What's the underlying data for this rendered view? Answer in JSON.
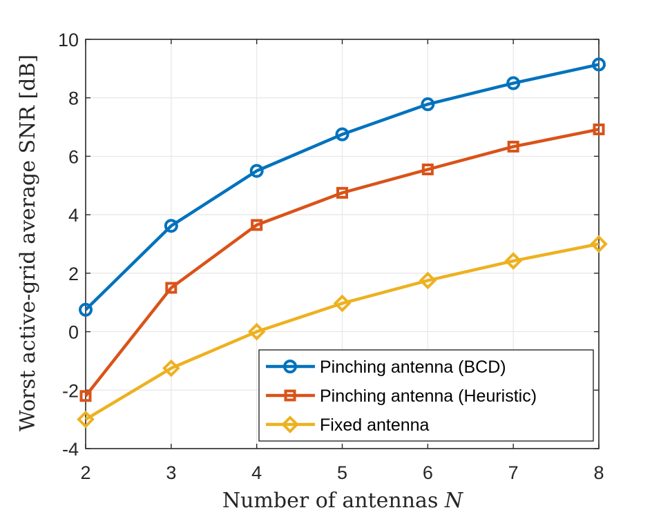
{
  "chart_data": {
    "type": "line",
    "title": "",
    "xlabel": "Number of antennas",
    "xlabel_var": "N",
    "ylabel": "Worst active-grid average SNR [dB]",
    "x": [
      2,
      3,
      4,
      5,
      6,
      7,
      8
    ],
    "xlim": [
      2,
      8
    ],
    "ylim": [
      -4,
      10
    ],
    "xticks": [
      "2",
      "3",
      "4",
      "5",
      "6",
      "7",
      "8"
    ],
    "yticks": [
      "-4",
      "-2",
      "0",
      "2",
      "4",
      "6",
      "8",
      "10"
    ],
    "grid": true,
    "legend_position": "bottom-right",
    "series": [
      {
        "name": "Pinching antenna (BCD)",
        "values": [
          0.75,
          3.62,
          5.5,
          6.75,
          7.78,
          8.5,
          9.14
        ],
        "color": "#0072BD",
        "marker": "circle"
      },
      {
        "name": "Pinching antenna (Heuristic)",
        "values": [
          -2.2,
          1.5,
          3.65,
          4.75,
          5.55,
          6.33,
          6.92
        ],
        "color": "#D95319",
        "marker": "square"
      },
      {
        "name": "Fixed antenna",
        "values": [
          -3.0,
          -1.25,
          0.0,
          0.97,
          1.75,
          2.42,
          3.0
        ],
        "color": "#EDB120",
        "marker": "diamond"
      }
    ]
  }
}
